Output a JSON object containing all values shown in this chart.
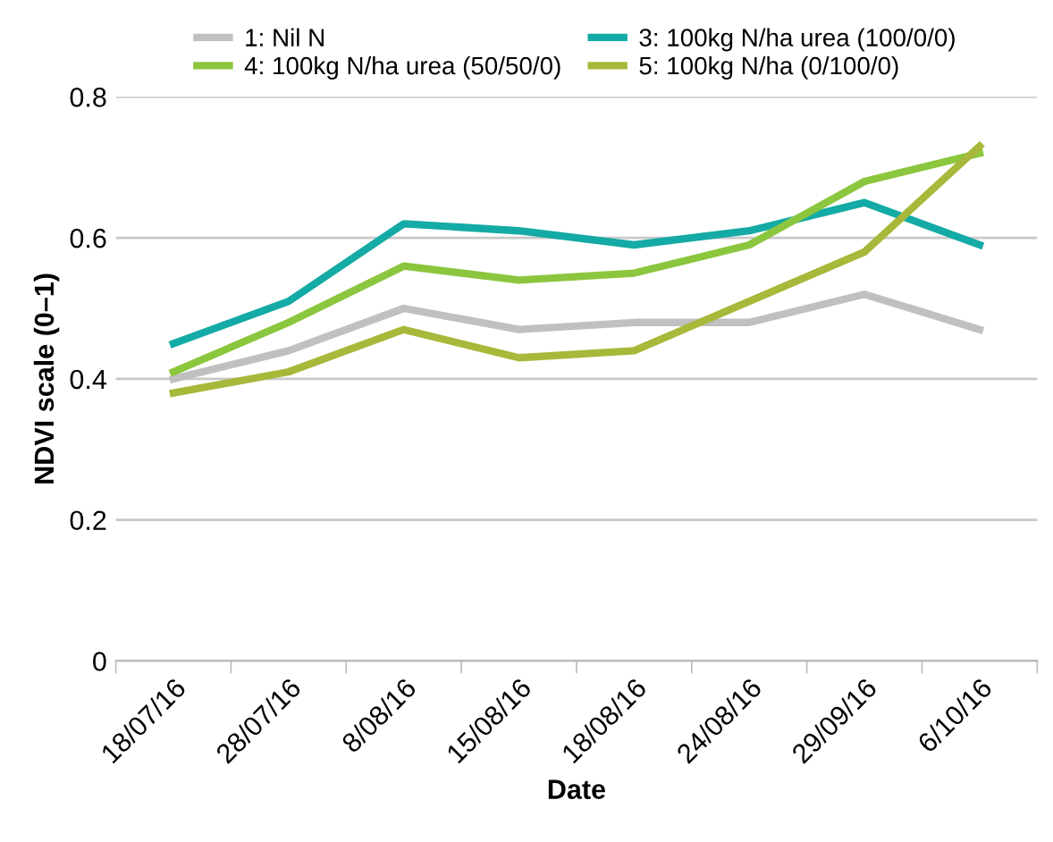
{
  "chart_data": {
    "type": "line",
    "xlabel": "Date",
    "ylabel": "NDVI scale (0–1)",
    "categories": [
      "18/07/16",
      "28/07/16",
      "8/08/16",
      "15/08/16",
      "18/08/16",
      "24/08/16",
      "29/09/16",
      "6/10/16"
    ],
    "series": [
      {
        "name": "1: Nil N",
        "color": "#c0c0c0",
        "values": [
          0.4,
          0.44,
          0.5,
          0.47,
          0.48,
          0.48,
          0.52,
          0.47
        ]
      },
      {
        "name": "3: 100kg N/ha urea (100/0/0)",
        "color": "#14aaa5",
        "values": [
          0.45,
          0.51,
          0.62,
          0.61,
          0.59,
          0.61,
          0.65,
          0.59
        ]
      },
      {
        "name": "4: 100kg N/ha urea (50/50/0)",
        "color": "#8cc63f",
        "values": [
          0.41,
          0.48,
          0.56,
          0.54,
          0.55,
          0.59,
          0.68,
          0.72
        ]
      },
      {
        "name": "5: 100kg N/ha (0/100/0)",
        "color": "#a8b83a",
        "values": [
          0.38,
          0.41,
          0.47,
          0.43,
          0.44,
          0.51,
          0.58,
          0.73
        ]
      }
    ],
    "ylim": [
      0,
      0.8
    ],
    "yticks": [
      0,
      {
        "value": 0.2,
        "label": "0.2"
      },
      {
        "value": 0.4,
        "label": "0.4"
      },
      {
        "value": 0.6,
        "label": "0.6"
      },
      {
        "value": 0.8,
        "label": "0.8"
      }
    ],
    "grid": "y",
    "legend": "top",
    "marker": "none",
    "line_style": "solid"
  }
}
